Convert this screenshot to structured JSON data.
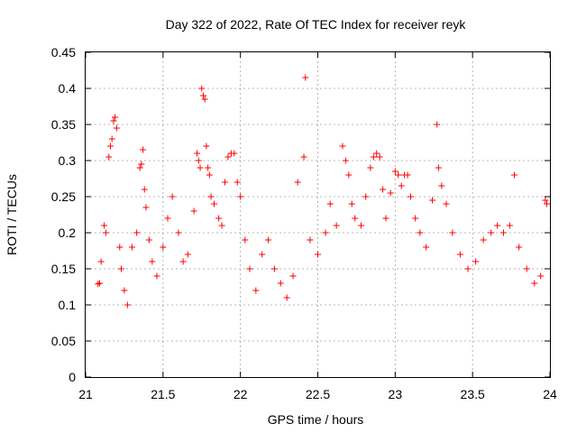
{
  "chart_data": {
    "type": "scatter",
    "title": "Day 322 of 2022, Rate Of TEC Index for receiver reyk",
    "xlabel": "GPS time / hours",
    "ylabel": "ROTI / TECUs",
    "xlim": [
      21,
      24
    ],
    "ylim": [
      0,
      0.45
    ],
    "x_ticks": [
      21,
      21.5,
      22,
      22.5,
      23,
      23.5,
      24
    ],
    "x_tick_labels": [
      "21",
      "21.5",
      "22",
      "22.5",
      "23",
      "23.5",
      "24"
    ],
    "y_ticks": [
      0,
      0.05,
      0.1,
      0.15,
      0.2,
      0.25,
      0.3,
      0.35,
      0.4,
      0.45
    ],
    "y_tick_labels": [
      "0",
      "0.05",
      "0.1",
      "0.15",
      "0.2",
      "0.25",
      "0.3",
      "0.35",
      "0.4",
      "0.45"
    ],
    "grid": true,
    "marker": "+",
    "marker_color": "#ff0000",
    "series": [
      {
        "points": [
          [
            21.08,
            0.129
          ],
          [
            21.09,
            0.13
          ],
          [
            21.1,
            0.16
          ],
          [
            21.12,
            0.21
          ],
          [
            21.13,
            0.2
          ],
          [
            21.15,
            0.305
          ],
          [
            21.16,
            0.32
          ],
          [
            21.17,
            0.33
          ],
          [
            21.18,
            0.355
          ],
          [
            21.19,
            0.36
          ],
          [
            21.2,
            0.345
          ],
          [
            21.22,
            0.18
          ],
          [
            21.23,
            0.15
          ],
          [
            21.25,
            0.12
          ],
          [
            21.27,
            0.1
          ],
          [
            21.3,
            0.18
          ],
          [
            21.33,
            0.2
          ],
          [
            21.35,
            0.29
          ],
          [
            21.36,
            0.295
          ],
          [
            21.37,
            0.315
          ],
          [
            21.38,
            0.26
          ],
          [
            21.39,
            0.235
          ],
          [
            21.41,
            0.19
          ],
          [
            21.43,
            0.16
          ],
          [
            21.46,
            0.14
          ],
          [
            21.5,
            0.18
          ],
          [
            21.53,
            0.22
          ],
          [
            21.56,
            0.25
          ],
          [
            21.6,
            0.2
          ],
          [
            21.63,
            0.16
          ],
          [
            21.66,
            0.17
          ],
          [
            21.7,
            0.23
          ],
          [
            21.72,
            0.31
          ],
          [
            21.73,
            0.3
          ],
          [
            21.74,
            0.29
          ],
          [
            21.75,
            0.4
          ],
          [
            21.76,
            0.39
          ],
          [
            21.77,
            0.385
          ],
          [
            21.78,
            0.32
          ],
          [
            21.79,
            0.29
          ],
          [
            21.8,
            0.28
          ],
          [
            21.81,
            0.25
          ],
          [
            21.83,
            0.24
          ],
          [
            21.86,
            0.22
          ],
          [
            21.88,
            0.21
          ],
          [
            21.9,
            0.27
          ],
          [
            21.92,
            0.305
          ],
          [
            21.94,
            0.31
          ],
          [
            21.96,
            0.31
          ],
          [
            21.98,
            0.27
          ],
          [
            22.0,
            0.25
          ],
          [
            22.03,
            0.19
          ],
          [
            22.06,
            0.15
          ],
          [
            22.1,
            0.12
          ],
          [
            22.14,
            0.17
          ],
          [
            22.18,
            0.19
          ],
          [
            22.22,
            0.15
          ],
          [
            22.26,
            0.13
          ],
          [
            22.3,
            0.11
          ],
          [
            22.34,
            0.14
          ],
          [
            22.37,
            0.27
          ],
          [
            22.41,
            0.305
          ],
          [
            22.42,
            0.415
          ],
          [
            22.45,
            0.19
          ],
          [
            22.5,
            0.17
          ],
          [
            22.55,
            0.2
          ],
          [
            22.58,
            0.24
          ],
          [
            22.62,
            0.21
          ],
          [
            22.66,
            0.32
          ],
          [
            22.68,
            0.3
          ],
          [
            22.7,
            0.28
          ],
          [
            22.72,
            0.24
          ],
          [
            22.74,
            0.22
          ],
          [
            22.78,
            0.21
          ],
          [
            22.81,
            0.25
          ],
          [
            22.84,
            0.29
          ],
          [
            22.86,
            0.305
          ],
          [
            22.88,
            0.31
          ],
          [
            22.9,
            0.305
          ],
          [
            22.92,
            0.26
          ],
          [
            22.94,
            0.22
          ],
          [
            22.97,
            0.255
          ],
          [
            23.0,
            0.285
          ],
          [
            23.02,
            0.28
          ],
          [
            23.04,
            0.265
          ],
          [
            23.06,
            0.28
          ],
          [
            23.08,
            0.28
          ],
          [
            23.1,
            0.25
          ],
          [
            23.13,
            0.22
          ],
          [
            23.16,
            0.2
          ],
          [
            23.2,
            0.18
          ],
          [
            23.24,
            0.245
          ],
          [
            23.27,
            0.35
          ],
          [
            23.28,
            0.29
          ],
          [
            23.3,
            0.265
          ],
          [
            23.33,
            0.24
          ],
          [
            23.37,
            0.2
          ],
          [
            23.42,
            0.17
          ],
          [
            23.47,
            0.15
          ],
          [
            23.52,
            0.16
          ],
          [
            23.57,
            0.19
          ],
          [
            23.62,
            0.2
          ],
          [
            23.66,
            0.21
          ],
          [
            23.7,
            0.2
          ],
          [
            23.74,
            0.21
          ],
          [
            23.77,
            0.28
          ],
          [
            23.8,
            0.18
          ],
          [
            23.85,
            0.15
          ],
          [
            23.9,
            0.13
          ],
          [
            23.94,
            0.14
          ],
          [
            23.97,
            0.245
          ],
          [
            23.98,
            0.24
          ]
        ]
      }
    ]
  }
}
